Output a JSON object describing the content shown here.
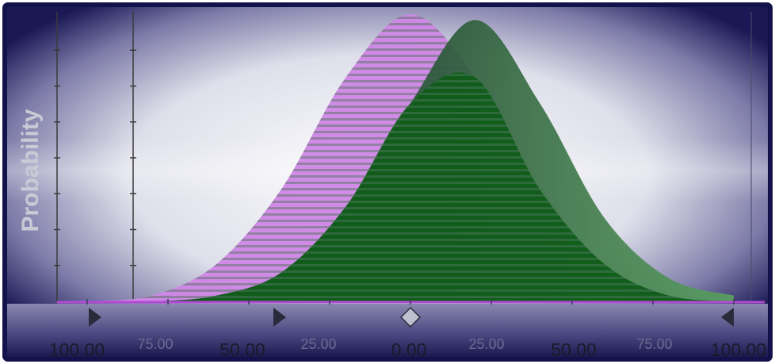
{
  "chart_data": {
    "type": "area",
    "title": "",
    "xlabel": "",
    "ylabel": "Probability",
    "xlim": [
      -100,
      100
    ],
    "grid": false,
    "legend": "none",
    "x_tick_labels": [
      "100.00",
      "75.00",
      "50.00",
      "25.00",
      "0.00",
      "25.00",
      "50.00",
      "75.00",
      "100.00"
    ],
    "x_tick_values": [
      -100,
      -75,
      -50,
      -25,
      0,
      25,
      50,
      75,
      100
    ],
    "minor_tick_labels": [
      "75.00",
      "25.00",
      "25.00",
      "75.00"
    ],
    "series": [
      {
        "color": "#d38ae8",
        "x": [
          -100,
          -80,
          -60,
          -40,
          -20,
          0,
          20,
          40,
          60,
          80,
          100
        ],
        "values": [
          0.0,
          0.02,
          0.13,
          0.39,
          0.78,
          1.0,
          0.78,
          0.39,
          0.13,
          0.02,
          0.0
        ]
      },
      {
        "color": "#3f8a4a",
        "x": [
          -100,
          -80,
          -60,
          -40,
          -20,
          0,
          20,
          40,
          60,
          80,
          100
        ],
        "values": [
          0.0,
          0.0,
          0.02,
          0.1,
          0.33,
          0.69,
          0.98,
          0.69,
          0.29,
          0.08,
          0.02
        ]
      }
    ],
    "markers": {
      "lower_bound": -50,
      "mean": 0,
      "range_start": -100,
      "range_end": 100
    },
    "colors": {
      "frame": "#14124a",
      "background_light": "#ffffff",
      "pink": "#d38ae8",
      "green": "#3f8a4a",
      "dark_green": "#0f5c14"
    }
  }
}
